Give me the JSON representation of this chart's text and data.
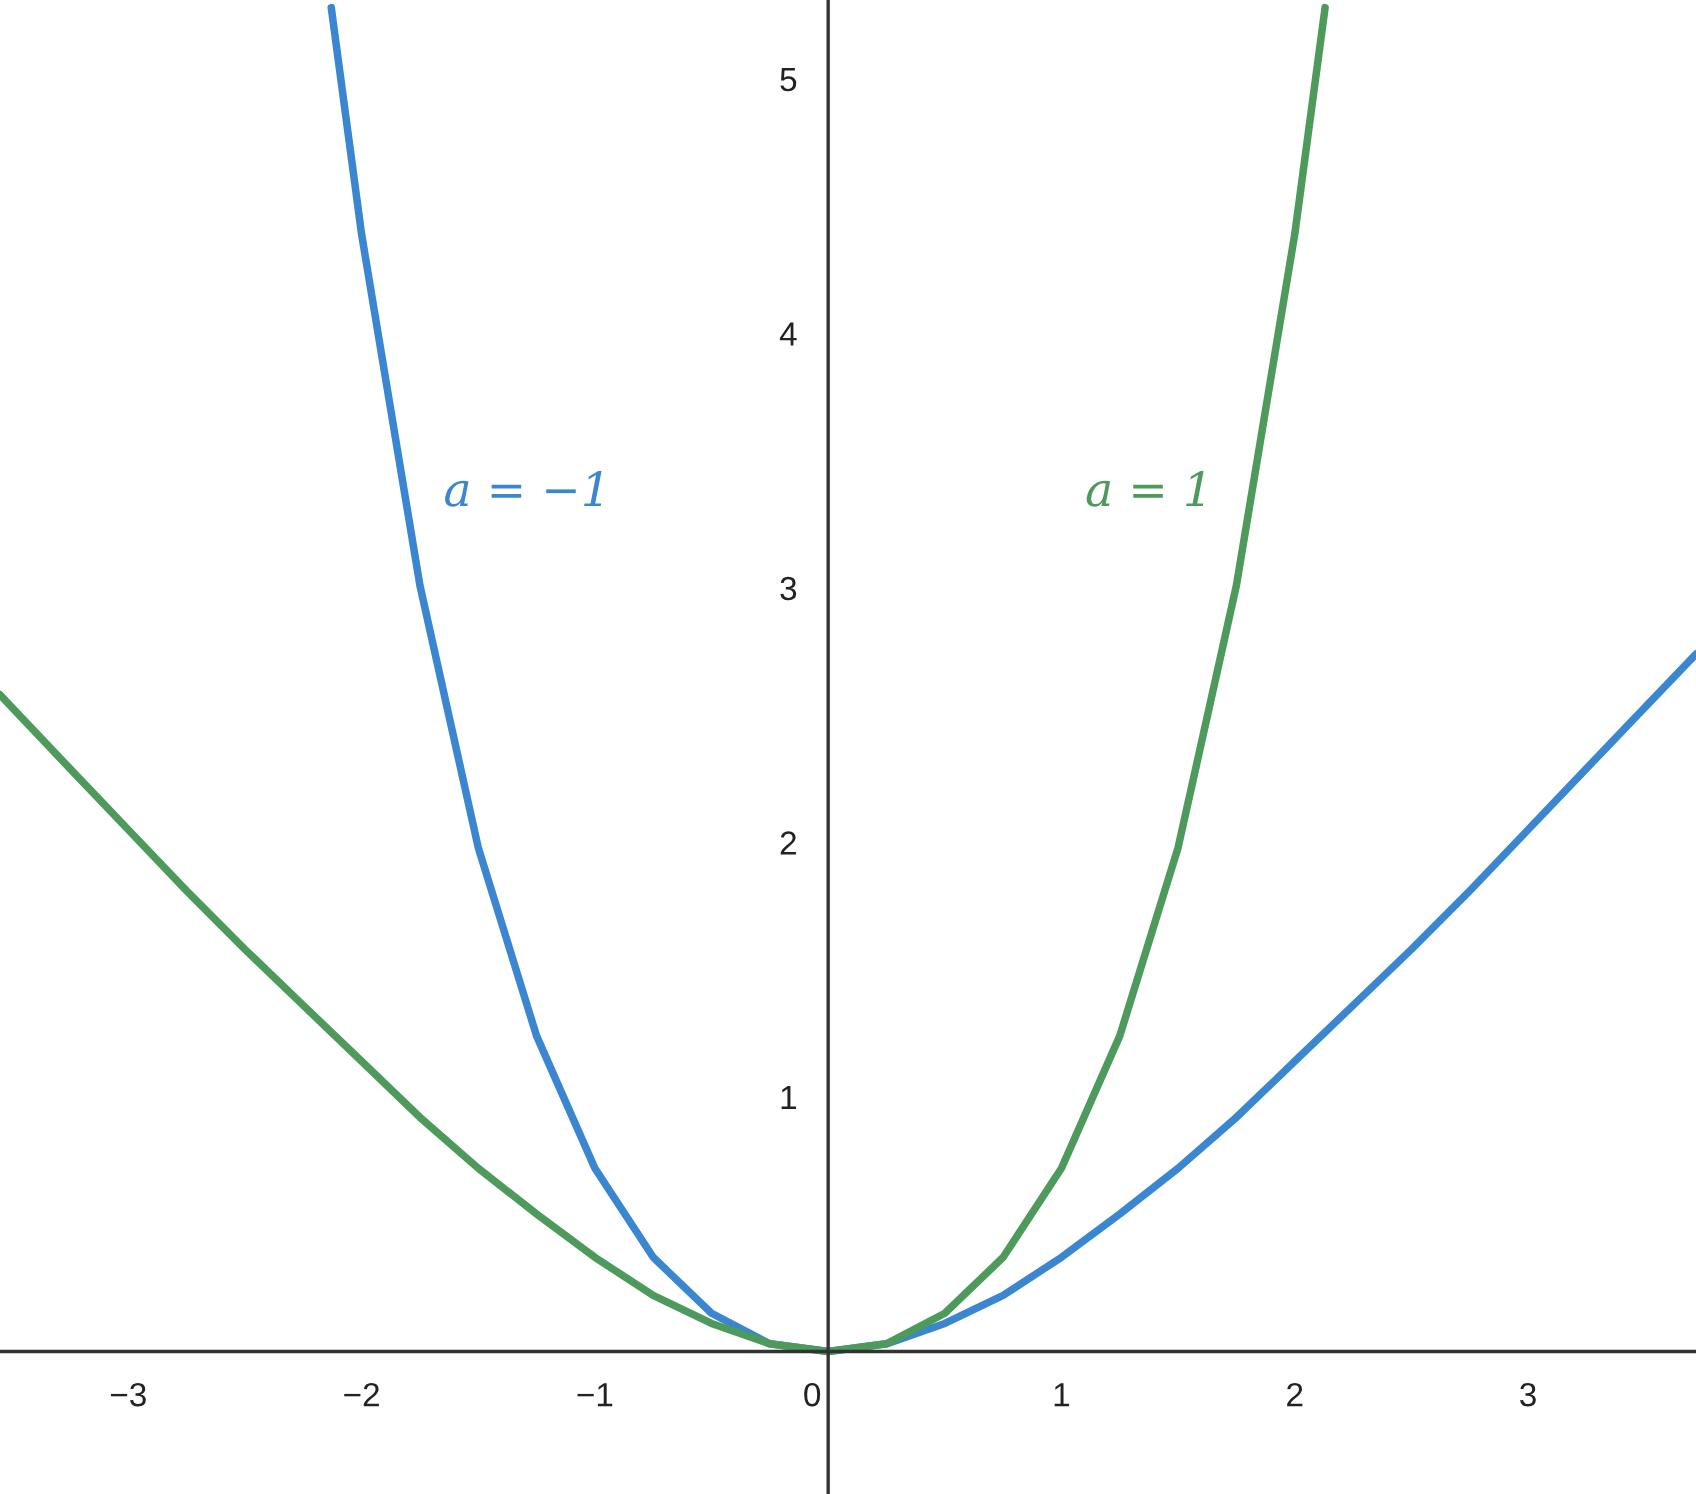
{
  "chart_data": {
    "type": "line",
    "xlim": [
      -3.55,
      3.72
    ],
    "ylim": [
      -0.56,
      5.31
    ],
    "xticks": [
      -3,
      -2,
      -1,
      0,
      1,
      2,
      3
    ],
    "yticks": [
      1,
      2,
      3,
      4,
      5
    ],
    "grid": false,
    "legend": false,
    "marker": "none",
    "line_style": "solid",
    "series": [
      {
        "name": "a = −1",
        "color": "#3a86d0",
        "x": [
          -2.13,
          -2,
          -1.75,
          -1.5,
          -1.25,
          -1,
          -0.75,
          -0.5,
          -0.25,
          0,
          0.25,
          0.5,
          0.75,
          1,
          1.25,
          1.5,
          1.75,
          2,
          2.25,
          2.5,
          2.75,
          3,
          3.25,
          3.5,
          3.72
        ],
        "values": [
          5.28,
          4.39,
          3.01,
          1.98,
          1.24,
          0.72,
          0.37,
          0.15,
          0.03,
          0,
          0.03,
          0.11,
          0.22,
          0.37,
          0.54,
          0.72,
          0.92,
          1.14,
          1.36,
          1.58,
          1.81,
          2.05,
          2.29,
          2.53,
          2.74
        ]
      },
      {
        "name": "a = 1",
        "color": "#4e9a5c",
        "x": [
          -3.55,
          -3.25,
          -3,
          -2.75,
          -2.5,
          -2.25,
          -2,
          -1.75,
          -1.5,
          -1.25,
          -1,
          -0.75,
          -0.5,
          -0.25,
          0,
          0.25,
          0.5,
          0.75,
          1,
          1.25,
          1.5,
          1.75,
          2,
          2.13
        ],
        "values": [
          2.58,
          2.29,
          2.05,
          1.81,
          1.58,
          1.36,
          1.14,
          0.92,
          0.72,
          0.54,
          0.37,
          0.22,
          0.11,
          0.03,
          0,
          0.03,
          0.15,
          0.37,
          0.72,
          1.24,
          1.98,
          3.01,
          4.39,
          5.28
        ]
      }
    ]
  }
}
